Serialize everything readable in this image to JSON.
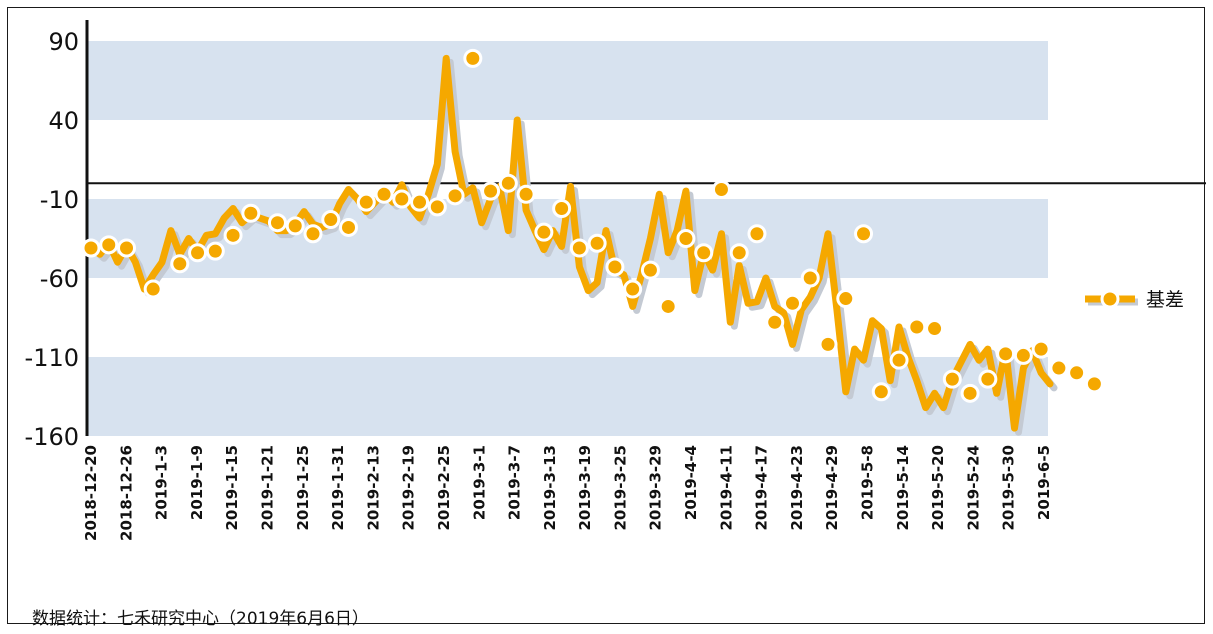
{
  "chart_data": {
    "type": "line",
    "title": "",
    "xlabel": "",
    "ylabel": "",
    "ylim": [
      -160,
      90
    ],
    "yticks": [
      90,
      40,
      -10,
      -60,
      -110,
      -160
    ],
    "grid_bands": true,
    "reference_line": 0,
    "legend": {
      "position": "right",
      "label": "基差"
    },
    "colors": {
      "line": "#F5A800",
      "shadow": "#C4CAD3",
      "band": "#D7E2EF",
      "marker_fill": "#F5A800",
      "marker_stroke": "#ffffff"
    },
    "tick_labels": [
      "2018-12-20",
      "2018-12-26",
      "2019-1-3",
      "2019-1-9",
      "2019-1-15",
      "2019-1-21",
      "2019-1-25",
      "2019-1-31",
      "2019-2-13",
      "2019-2-19",
      "2019-2-25",
      "2019-3-1",
      "2019-3-7",
      "2019-3-13",
      "2019-3-19",
      "2019-3-25",
      "2019-3-29",
      "2019-4-4",
      "2019-4-11",
      "2019-4-17",
      "2019-4-23",
      "2019-4-29",
      "2019-5-8",
      "2019-5-14",
      "2019-5-20",
      "2019-5-24",
      "2019-5-30",
      "2019-6-5"
    ],
    "series": [
      {
        "name": "基差",
        "values": [
          -40,
          -45,
          -38,
          -50,
          -40,
          -50,
          -67,
          -58,
          -50,
          -30,
          -45,
          -35,
          -43,
          -33,
          -32,
          -22,
          -16,
          -25,
          -20,
          -22,
          -24,
          -30,
          -30,
          -26,
          -18,
          -26,
          -28,
          -26,
          -13,
          -4,
          -10,
          -18,
          -12,
          -6,
          -12,
          -1,
          -15,
          -22,
          -7,
          12,
          79,
          20,
          -7,
          -3,
          -25,
          -10,
          -2,
          -30,
          40,
          -17,
          -30,
          -42,
          -30,
          -40,
          -2,
          -53,
          -68,
          -63,
          -30,
          -55,
          -58,
          -78,
          -58,
          -35,
          -7,
          -44,
          -30,
          -5,
          -68,
          -44,
          -55,
          -32,
          -88,
          -52,
          -76,
          -75,
          -60,
          -78,
          -82,
          -102,
          -80,
          -72,
          -60,
          -32,
          -80,
          -132,
          -105,
          -112,
          -87,
          -92,
          -125,
          -91,
          -110,
          -125,
          -142,
          -133,
          -142,
          -124,
          -113,
          -102,
          -112,
          -105,
          -133,
          -105,
          -155,
          -117,
          -106,
          -120,
          -127
        ],
        "markers": [
          [
            0,
            -41
          ],
          [
            2,
            -39
          ],
          [
            4,
            -41
          ],
          [
            7,
            -67
          ],
          [
            10,
            -51
          ],
          [
            12,
            -44
          ],
          [
            14,
            -43
          ],
          [
            16,
            -33
          ],
          [
            18,
            -19
          ],
          [
            21,
            -25
          ],
          [
            23,
            -27
          ],
          [
            25,
            -32
          ],
          [
            27,
            -23
          ],
          [
            29,
            -28
          ],
          [
            31,
            -12
          ],
          [
            33,
            -7
          ],
          [
            35,
            -10
          ],
          [
            37,
            -12
          ],
          [
            39,
            -15
          ],
          [
            41,
            -8
          ],
          [
            43,
            79
          ],
          [
            45,
            -5
          ],
          [
            47,
            0
          ],
          [
            49,
            -7
          ],
          [
            51,
            -31
          ],
          [
            53,
            -16
          ],
          [
            55,
            -41
          ],
          [
            57,
            -38
          ],
          [
            59,
            -53
          ],
          [
            61,
            -67
          ],
          [
            63,
            -55
          ],
          [
            65,
            -78
          ],
          [
            67,
            -35
          ],
          [
            69,
            -44
          ],
          [
            71,
            -4
          ],
          [
            73,
            -44
          ],
          [
            75,
            -32
          ],
          [
            77,
            -88
          ],
          [
            79,
            -76
          ],
          [
            81,
            -60
          ],
          [
            83,
            -102
          ],
          [
            85,
            -73
          ],
          [
            87,
            -32
          ],
          [
            89,
            -132
          ],
          [
            91,
            -112
          ],
          [
            93,
            -91
          ],
          [
            95,
            -92
          ],
          [
            97,
            -124
          ],
          [
            99,
            -133
          ],
          [
            101,
            -124
          ],
          [
            103,
            -108
          ],
          [
            105,
            -109
          ],
          [
            107,
            -105
          ],
          [
            109,
            -117
          ],
          [
            111,
            -120
          ],
          [
            113,
            -127
          ]
        ]
      }
    ],
    "source_note": "数据统计：七禾研究中心（2019年6月6日）"
  }
}
